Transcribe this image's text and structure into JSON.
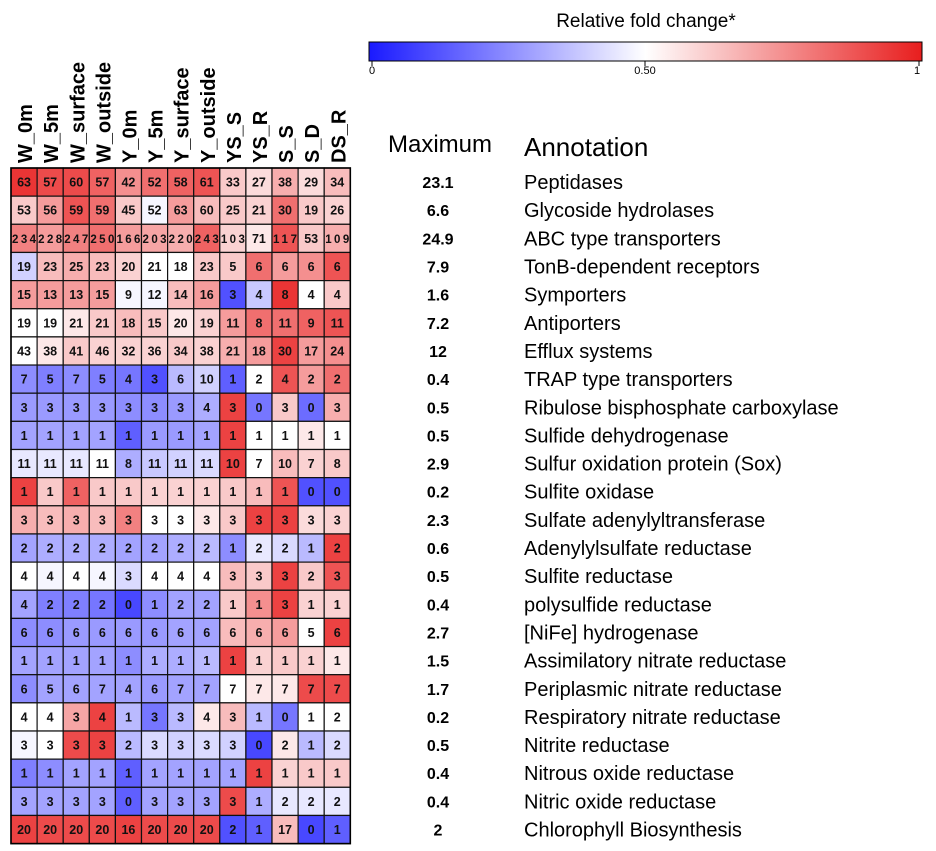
{
  "chart_data": {
    "type": "heatmap",
    "colorbar": {
      "title": "Relative  fold change*",
      "ticks": [
        {
          "value": 0,
          "label": "0"
        },
        {
          "value": 0.5,
          "label": "0.50"
        },
        {
          "value": 1,
          "label": "1"
        }
      ],
      "low_color": "#1a1aff",
      "mid_color": "#ffffff",
      "high_color": "#e81e1e"
    },
    "columns": [
      "W_0m",
      "W_5m",
      "W_surface",
      "W_outside",
      "Y_0m",
      "Y_5m",
      "Y_surface",
      "Y_outside",
      "YS_S",
      "YS_R",
      "S_S",
      "S_D",
      "DS_R"
    ],
    "maximum_header": "Maximum",
    "annotation_header": "Annotation",
    "rows": [
      {
        "annotation": "Peptidases",
        "maximum": "23.1",
        "counts": [
          63,
          57,
          60,
          57,
          42,
          52,
          58,
          61,
          33,
          27,
          38,
          29,
          34
        ],
        "fold": [
          0.95,
          0.9,
          0.9,
          0.85,
          0.75,
          0.82,
          0.85,
          0.88,
          0.62,
          0.58,
          0.68,
          0.58,
          0.65
        ]
      },
      {
        "annotation": "Glycoside hydrolases",
        "maximum": "6.6",
        "counts": [
          53,
          56,
          59,
          59,
          45,
          52,
          63,
          60,
          25,
          21,
          30,
          19,
          26
        ],
        "fold": [
          0.62,
          0.72,
          0.88,
          0.82,
          0.62,
          0.48,
          0.72,
          0.65,
          0.62,
          0.6,
          0.82,
          0.62,
          0.6
        ]
      },
      {
        "annotation": "ABC type transporters",
        "maximum": "24.9",
        "counts": [
          234,
          228,
          247,
          250,
          166,
          203,
          220,
          243,
          103,
          71,
          117,
          53,
          109
        ],
        "fold": [
          0.78,
          0.72,
          0.78,
          0.82,
          0.72,
          0.7,
          0.68,
          0.85,
          0.6,
          0.55,
          0.88,
          0.62,
          0.68
        ]
      },
      {
        "annotation": "TonB-dependent receptors",
        "maximum": "7.9",
        "counts": [
          19,
          23,
          25,
          23,
          20,
          21,
          18,
          23,
          5,
          6,
          6,
          6,
          6
        ],
        "fold": [
          0.4,
          0.65,
          0.68,
          0.65,
          0.6,
          0.5,
          0.5,
          0.62,
          0.62,
          0.82,
          0.72,
          0.75,
          0.88
        ]
      },
      {
        "annotation": "Symporters",
        "maximum": "1.6",
        "counts": [
          15,
          13,
          13,
          15,
          9,
          12,
          14,
          16,
          3,
          4,
          8,
          4,
          4
        ],
        "fold": [
          0.72,
          0.72,
          0.72,
          0.72,
          0.48,
          0.48,
          0.65,
          0.72,
          0.12,
          0.38,
          0.95,
          0.5,
          0.62
        ]
      },
      {
        "annotation": "Antiporters",
        "maximum": "7.2",
        "counts": [
          19,
          19,
          21,
          21,
          18,
          15,
          20,
          19,
          11,
          8,
          11,
          9,
          11
        ],
        "fold": [
          0.5,
          0.5,
          0.55,
          0.62,
          0.65,
          0.62,
          0.55,
          0.6,
          0.72,
          0.82,
          0.82,
          0.85,
          0.88
        ]
      },
      {
        "annotation": "Efflux systems",
        "maximum": "12",
        "counts": [
          43,
          38,
          41,
          46,
          32,
          36,
          34,
          38,
          21,
          18,
          30,
          17,
          24
        ],
        "fold": [
          0.5,
          0.55,
          0.62,
          0.6,
          0.6,
          0.6,
          0.62,
          0.6,
          0.68,
          0.72,
          0.92,
          0.72,
          0.75
        ]
      },
      {
        "annotation": "TRAP type transporters",
        "maximum": "0.4",
        "counts": [
          7,
          5,
          7,
          5,
          4,
          3,
          6,
          10,
          1,
          2,
          4,
          2,
          2
        ],
        "fold": [
          0.25,
          0.22,
          0.25,
          0.22,
          0.2,
          0.12,
          0.35,
          0.4,
          0.15,
          0.5,
          0.88,
          0.72,
          0.82
        ]
      },
      {
        "annotation": "Ribulose bisphosphate carboxylase",
        "maximum": "0.5",
        "counts": [
          3,
          3,
          3,
          3,
          3,
          3,
          3,
          4,
          3,
          0,
          3,
          0,
          3
        ],
        "fold": [
          0.28,
          0.28,
          0.28,
          0.28,
          0.25,
          0.25,
          0.28,
          0.32,
          0.92,
          0.2,
          0.62,
          0.18,
          0.68
        ]
      },
      {
        "annotation": "Sulfide dehydrogenase",
        "maximum": "0.5",
        "counts": [
          1,
          1,
          1,
          1,
          1,
          1,
          1,
          1,
          1,
          1,
          1,
          1,
          1
        ],
        "fold": [
          0.3,
          0.3,
          0.3,
          0.3,
          0.15,
          0.28,
          0.28,
          0.3,
          0.92,
          0.5,
          0.5,
          0.55,
          0.5
        ]
      },
      {
        "annotation": "Sulfur oxidation protein (Sox)",
        "maximum": "2.9",
        "counts": [
          11,
          11,
          11,
          11,
          8,
          11,
          11,
          11,
          10,
          7,
          10,
          7,
          8
        ],
        "fold": [
          0.45,
          0.45,
          0.45,
          0.5,
          0.32,
          0.38,
          0.4,
          0.42,
          0.92,
          0.5,
          0.65,
          0.6,
          0.62
        ]
      },
      {
        "annotation": "Sulfite oxidase",
        "maximum": "0.2",
        "counts": [
          1,
          1,
          1,
          1,
          1,
          1,
          1,
          1,
          1,
          1,
          1,
          0,
          0
        ],
        "fold": [
          0.92,
          0.62,
          0.85,
          0.62,
          0.62,
          0.6,
          0.6,
          0.6,
          0.62,
          0.65,
          0.88,
          0.12,
          0.12
        ]
      },
      {
        "annotation": "Sulfate adenylyltransferase",
        "maximum": "2.3",
        "counts": [
          3,
          3,
          3,
          3,
          3,
          3,
          3,
          3,
          3,
          3,
          3,
          3,
          3
        ],
        "fold": [
          0.68,
          0.65,
          0.68,
          0.65,
          0.78,
          0.5,
          0.5,
          0.55,
          0.62,
          0.92,
          0.92,
          0.58,
          0.6
        ]
      },
      {
        "annotation": "Adenylylsulfate reductase",
        "maximum": "0.6",
        "counts": [
          2,
          2,
          2,
          2,
          2,
          2,
          2,
          2,
          1,
          2,
          2,
          1,
          2
        ],
        "fold": [
          0.3,
          0.32,
          0.32,
          0.32,
          0.3,
          0.3,
          0.32,
          0.35,
          0.25,
          0.45,
          0.42,
          0.35,
          0.92
        ]
      },
      {
        "annotation": "Sulfite reductase",
        "maximum": "0.5",
        "counts": [
          4,
          4,
          4,
          4,
          3,
          4,
          4,
          4,
          3,
          3,
          3,
          2,
          3
        ],
        "fold": [
          0.5,
          0.48,
          0.5,
          0.48,
          0.42,
          0.5,
          0.5,
          0.5,
          0.65,
          0.62,
          0.92,
          0.62,
          0.88
        ]
      },
      {
        "annotation": "polysulfide reductase",
        "maximum": "0.4",
        "counts": [
          4,
          2,
          2,
          2,
          0,
          1,
          2,
          2,
          1,
          1,
          3,
          1,
          1
        ],
        "fold": [
          0.3,
          0.22,
          0.22,
          0.2,
          0.1,
          0.25,
          0.3,
          0.3,
          0.62,
          0.75,
          0.92,
          0.6,
          0.6
        ]
      },
      {
        "annotation": "[NiFe] hydrogenase",
        "maximum": "2.7",
        "counts": [
          6,
          6,
          6,
          6,
          6,
          6,
          6,
          6,
          6,
          6,
          6,
          5,
          6
        ],
        "fold": [
          0.25,
          0.25,
          0.28,
          0.28,
          0.28,
          0.28,
          0.3,
          0.3,
          0.65,
          0.68,
          0.72,
          0.5,
          0.92
        ]
      },
      {
        "annotation": "Assimilatory nitrate reductase",
        "maximum": "1.5",
        "counts": [
          1,
          1,
          1,
          1,
          1,
          1,
          1,
          1,
          1,
          1,
          1,
          1,
          1
        ],
        "fold": [
          0.3,
          0.3,
          0.3,
          0.3,
          0.25,
          0.32,
          0.32,
          0.35,
          0.92,
          0.6,
          0.62,
          0.6,
          0.55
        ]
      },
      {
        "annotation": "Periplasmic nitrate reductase",
        "maximum": "1.7",
        "counts": [
          6,
          5,
          6,
          7,
          4,
          6,
          7,
          7,
          7,
          7,
          7,
          7,
          7
        ],
        "fold": [
          0.25,
          0.3,
          0.3,
          0.3,
          0.3,
          0.28,
          0.3,
          0.3,
          0.5,
          0.55,
          0.55,
          0.9,
          0.9
        ]
      },
      {
        "annotation": "Respiratory nitrate reductase",
        "maximum": "0.2",
        "counts": [
          4,
          4,
          3,
          4,
          1,
          3,
          3,
          4,
          3,
          1,
          0,
          1,
          2
        ],
        "fold": [
          0.5,
          0.5,
          0.7,
          0.92,
          0.35,
          0.2,
          0.35,
          0.55,
          0.65,
          0.35,
          0.2,
          0.5,
          0.5
        ]
      },
      {
        "annotation": "Nitrite reductase",
        "maximum": "0.5",
        "counts": [
          3,
          3,
          3,
          3,
          2,
          3,
          3,
          3,
          3,
          0,
          2,
          1,
          2
        ],
        "fold": [
          0.48,
          0.5,
          0.9,
          0.92,
          0.35,
          0.42,
          0.4,
          0.42,
          0.4,
          0.1,
          0.55,
          0.35,
          0.42
        ]
      },
      {
        "annotation": "Nitrous oxide reductase",
        "maximum": "0.4",
        "counts": [
          1,
          1,
          1,
          1,
          1,
          1,
          1,
          1,
          1,
          1,
          1,
          1,
          1
        ],
        "fold": [
          0.22,
          0.25,
          0.3,
          0.3,
          0.15,
          0.3,
          0.3,
          0.3,
          0.3,
          0.92,
          0.6,
          0.62,
          0.62
        ]
      },
      {
        "annotation": "Nitric oxide reductase",
        "maximum": "0.4",
        "counts": [
          3,
          3,
          3,
          3,
          0,
          3,
          3,
          3,
          3,
          1,
          2,
          2,
          2
        ],
        "fold": [
          0.3,
          0.3,
          0.3,
          0.3,
          0.15,
          0.3,
          0.3,
          0.3,
          0.9,
          0.32,
          0.45,
          0.45,
          0.45
        ]
      },
      {
        "annotation": "Chlorophyll Biosynthesis",
        "maximum": "2",
        "counts": [
          20,
          20,
          20,
          20,
          16,
          20,
          20,
          20,
          2,
          1,
          17,
          0,
          1
        ],
        "fold": [
          0.92,
          0.9,
          0.9,
          0.9,
          0.92,
          0.9,
          0.9,
          0.9,
          0.12,
          0.15,
          0.65,
          0.1,
          0.15
        ]
      }
    ]
  }
}
